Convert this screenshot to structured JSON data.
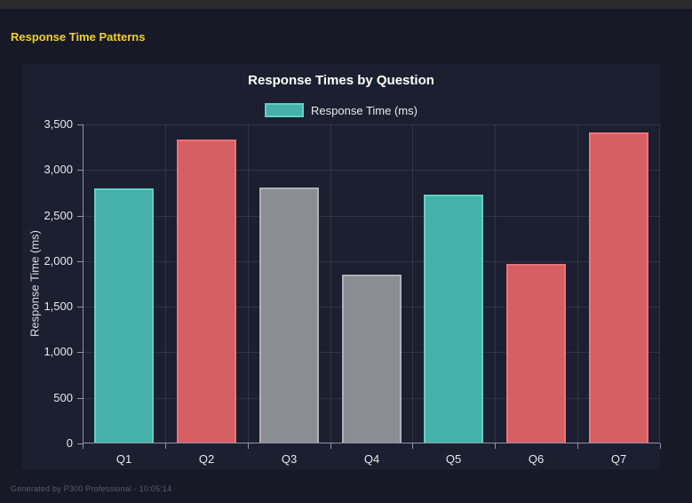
{
  "header": {
    "title": "Response Time Patterns"
  },
  "chart_data": {
    "type": "bar",
    "title": "Response Times by Question",
    "legend": {
      "label": "Response Time (ms)",
      "position": "top"
    },
    "categories": [
      "Q1",
      "Q2",
      "Q3",
      "Q4",
      "Q5",
      "Q6",
      "Q7"
    ],
    "values": [
      2790,
      3320,
      2800,
      1840,
      2720,
      1960,
      3400
    ],
    "series": [
      {
        "name": "Response Time (ms)",
        "values": [
          2790,
          3320,
          2800,
          1840,
          2720,
          1960,
          3400
        ]
      }
    ],
    "bar_colors": [
      {
        "fill": "#45b1a8",
        "border": "#62d0c6"
      },
      {
        "fill": "#d55f63",
        "border": "#ef7278"
      },
      {
        "fill": "#8c8c94",
        "border": "#b0b0b8"
      },
      {
        "fill": "#8c8c94",
        "border": "#b0b0b8"
      },
      {
        "fill": "#45b1a8",
        "border": "#62d0c6"
      },
      {
        "fill": "#d55f63",
        "border": "#ef7278"
      },
      {
        "fill": "#d55f63",
        "border": "#ef7278"
      }
    ],
    "legend_swatch": {
      "fill": "#45b1a8",
      "border": "#62d0c6"
    },
    "xlabel": "",
    "ylabel": "Response Time (ms)",
    "ylim": [
      0,
      3500
    ],
    "yticks": [
      0,
      500,
      1000,
      1500,
      2000,
      2500,
      3000,
      3500
    ],
    "ytick_labels": [
      "0",
      "500",
      "1,000",
      "1,500",
      "2,000",
      "2,500",
      "3,000",
      "3,500"
    ],
    "grid": true
  },
  "footer": {
    "text": "Generated by P300 Professional - 10:05:14"
  },
  "colors": {
    "page_bg": "#171a26",
    "panel_bg": "#1c1f30",
    "top_bar": "#2b2b2b",
    "header_text": "#f2cf2e",
    "chart_title_text": "#ffffff",
    "tick_text": "#e8e8ee",
    "grid_line": "rgba(255,255,255,0.09)",
    "axis_line": "#8f94a3",
    "footer_text": "#565b6c"
  }
}
